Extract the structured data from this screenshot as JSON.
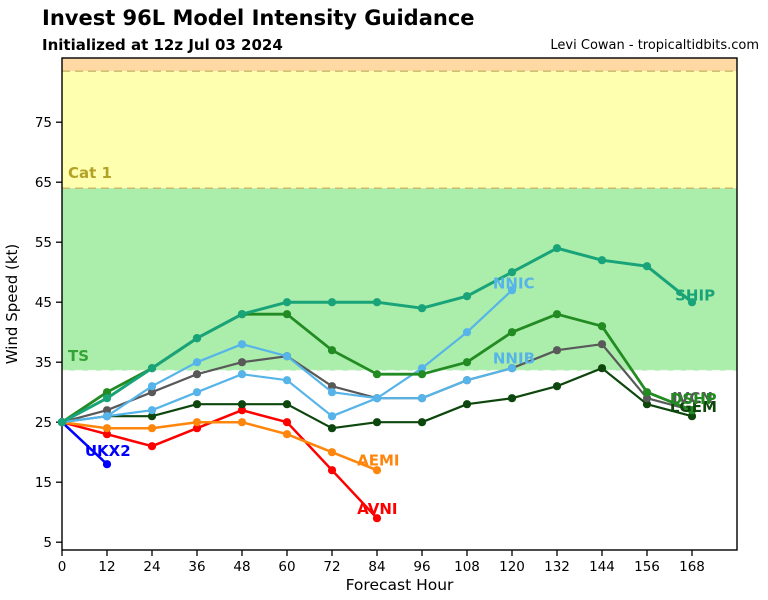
{
  "header": {
    "title": "Invest 96L Model Intensity Guidance",
    "subtitle": "Initialized at 12z Jul 03 2024",
    "credit": "Levi Cowan - tropicaltidbits.com"
  },
  "chart_data": {
    "type": "line",
    "title": "Invest 96L Model Intensity Guidance",
    "xlabel": "Forecast Hour",
    "ylabel": "Wind Speed (kt)",
    "xlim": [
      0,
      180
    ],
    "ylim": [
      3.7,
      85.7
    ],
    "xticks": [
      0,
      12,
      24,
      36,
      48,
      60,
      72,
      84,
      96,
      108,
      120,
      132,
      144,
      156,
      168
    ],
    "yticks": [
      5,
      15,
      25,
      35,
      45,
      55,
      65,
      75
    ],
    "grid": false,
    "hours_step": 12,
    "bands": [
      {
        "name": "cat2-band",
        "color": "#ffd9a3",
        "from": 83.5,
        "to": 85.7
      },
      {
        "name": "cat1-band",
        "color": "#ffffb0",
        "from": 64.0,
        "to": 83.5
      },
      {
        "name": "ts-band",
        "color": "#abedab",
        "from": 33.6,
        "to": 64.0
      }
    ],
    "threshold_lines": [
      {
        "name": "cat2-line",
        "value": 83.5,
        "color": "#c9b766"
      },
      {
        "name": "cat1-line",
        "value": 64.0,
        "color": "#c9b766"
      },
      {
        "name": "ts-line",
        "value": 33.6,
        "color": "#f2fbf2"
      }
    ],
    "zone_labels": [
      {
        "text": "Cat 1",
        "x_hour": 1.6,
        "y_kt": 65.7,
        "color": "#b3a227"
      },
      {
        "text": "TS",
        "x_hour": 1.6,
        "y_kt": 35.2,
        "color": "#35a335"
      }
    ],
    "series": [
      {
        "name": "UKX2",
        "color": "#0000ff",
        "width": 2.5,
        "values": [
          25,
          18
        ],
        "label": {
          "x_hour": 6.1,
          "y_kt": 19.4
        }
      },
      {
        "name": "AVNI",
        "color": "#ff0000",
        "width": 2.5,
        "values": [
          25,
          23,
          21,
          24,
          27,
          25,
          17,
          9
        ],
        "label": {
          "x_hour": 78.7,
          "y_kt": 9.7
        }
      },
      {
        "name": "AEMI",
        "color": "#ff860d",
        "width": 2.5,
        "values": [
          25,
          24,
          24,
          25,
          25,
          23,
          20,
          17
        ],
        "label": {
          "x_hour": 78.7,
          "y_kt": 17.8
        }
      },
      {
        "name": "LGEM",
        "color": "#0d470d",
        "width": 2.2,
        "values": [
          25,
          26,
          26,
          28,
          28,
          28,
          24,
          25,
          25,
          28,
          29,
          31,
          34,
          28,
          26
        ],
        "label": {
          "x_hour": 162.1,
          "y_kt": 26.7
        }
      },
      {
        "name": "IVCN",
        "color": "#595959",
        "width": 2.2,
        "values": [
          25,
          27,
          30,
          33,
          35,
          36,
          31,
          29,
          29,
          32,
          34,
          37,
          38,
          29,
          27
        ],
        "label": {
          "x_hour": 162.7,
          "y_kt": 28.2
        }
      },
      {
        "name": "NNIB",
        "color": "#56b4e9",
        "width": 2.2,
        "values": [
          25,
          26,
          27,
          30,
          33,
          32,
          26,
          29,
          29,
          32,
          34
        ],
        "label": {
          "x_hour": 114.9,
          "y_kt": 34.8
        }
      },
      {
        "name": "NNIC",
        "color": "#56b4e9",
        "width": 2.2,
        "values": [
          25,
          26,
          31,
          35,
          38,
          36,
          30,
          29,
          34,
          40,
          47
        ],
        "label": {
          "x_hour": 114.9,
          "y_kt": 47.3
        }
      },
      {
        "name": "DSHP",
        "color": "#228b22",
        "width": 2.8,
        "values": [
          25,
          30,
          34,
          39,
          43,
          43,
          37,
          33,
          33,
          35,
          40,
          43,
          41,
          30,
          27
        ],
        "label": {
          "x_hour": 162.1,
          "y_kt": 28.0
        }
      },
      {
        "name": "SHIP",
        "color": "#18a378",
        "width": 3.0,
        "values": [
          25,
          29,
          34,
          39,
          43,
          45,
          45,
          45,
          44,
          46,
          50,
          54,
          52,
          51,
          45
        ],
        "label": {
          "x_hour": 163.5,
          "y_kt": 45.3
        }
      }
    ]
  }
}
